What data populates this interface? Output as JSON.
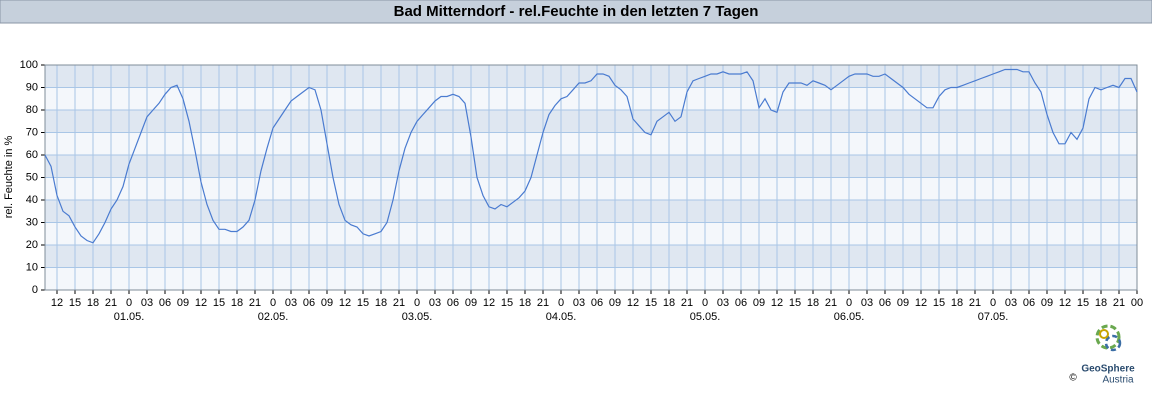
{
  "chart_data": {
    "type": "line",
    "title": "Bad Mitterndorf - rel.Feuchte in den letzten 7 Tagen",
    "y_label": "rel. Feuchte in %",
    "x": [
      -14,
      -13,
      -12,
      -11,
      -10,
      -9,
      -8,
      -7,
      -6,
      -5,
      -4,
      -3,
      -2,
      -1,
      0,
      1,
      2,
      3,
      4,
      5,
      6,
      7,
      8,
      9,
      10,
      11,
      12,
      13,
      14,
      15,
      16,
      17,
      18,
      19,
      20,
      21,
      22,
      23,
      24,
      25,
      26,
      27,
      28,
      29,
      30,
      31,
      32,
      33,
      34,
      35,
      36,
      37,
      38,
      39,
      40,
      41,
      42,
      43,
      44,
      45,
      46,
      47,
      48,
      49,
      50,
      51,
      52,
      53,
      54,
      55,
      56,
      57,
      58,
      59,
      60,
      61,
      62,
      63,
      64,
      65,
      66,
      67,
      68,
      69,
      70,
      71,
      72,
      73,
      74,
      75,
      76,
      77,
      78,
      79,
      80,
      81,
      82,
      83,
      84,
      85,
      86,
      87,
      88,
      89,
      90,
      91,
      92,
      93,
      94,
      95,
      96,
      97,
      98,
      99,
      100,
      101,
      102,
      103,
      104,
      105,
      106,
      107,
      108,
      109,
      110,
      111,
      112,
      113,
      114,
      115,
      116,
      117,
      118,
      119,
      120,
      121,
      122,
      123,
      124,
      125,
      126,
      127,
      128,
      129,
      130,
      131,
      132,
      133,
      134,
      135,
      136,
      137,
      138,
      139,
      140,
      141,
      142,
      143,
      144,
      145,
      146,
      147,
      148,
      149,
      150,
      151,
      152,
      153,
      154,
      155,
      156,
      157,
      158,
      159,
      160,
      161,
      162,
      163,
      164,
      165,
      166,
      167,
      168
    ],
    "series": [
      {
        "name": "rel. Feuchte",
        "color": "#4a7bd0",
        "values": [
          60,
          55,
          42,
          35,
          33,
          28,
          24,
          22,
          21,
          25,
          30,
          36,
          40,
          46,
          56,
          63,
          70,
          77,
          80,
          83,
          87,
          90,
          91,
          85,
          75,
          62,
          48,
          38,
          31,
          27,
          27,
          26,
          26,
          28,
          31,
          40,
          53,
          63,
          72,
          76,
          80,
          84,
          86,
          88,
          90,
          89,
          80,
          65,
          50,
          38,
          31,
          29,
          28,
          25,
          24,
          25,
          26,
          30,
          40,
          53,
          63,
          70,
          75,
          78,
          81,
          84,
          86,
          86,
          87,
          86,
          83,
          68,
          50,
          42,
          37,
          36,
          38,
          37,
          39,
          41,
          44,
          50,
          60,
          70,
          78,
          82,
          85,
          86,
          89,
          92,
          92,
          93,
          96,
          96,
          95,
          91,
          89,
          86,
          76,
          73,
          70,
          69,
          75,
          77,
          79,
          75,
          77,
          88,
          93,
          94,
          95,
          96,
          96,
          97,
          96,
          96,
          96,
          97,
          93,
          81,
          85,
          80,
          79,
          88,
          92,
          92,
          92,
          91,
          93,
          92,
          91,
          89,
          91,
          93,
          95,
          96,
          96,
          96,
          95,
          95,
          96,
          94,
          92,
          90,
          87,
          85,
          83,
          81,
          81,
          86,
          89,
          90,
          90,
          91,
          92,
          93,
          94,
          95,
          96,
          97,
          98,
          98,
          98,
          97,
          97,
          92,
          88,
          78,
          70,
          65,
          65,
          70,
          67,
          72,
          85,
          90,
          89,
          90,
          91,
          90,
          94,
          94,
          88
        ]
      }
    ],
    "xlim": [
      -14,
      168
    ],
    "xticks": [
      {
        "value": -12,
        "label": "12"
      },
      {
        "value": -9,
        "label": "15"
      },
      {
        "value": -6,
        "label": "18"
      },
      {
        "value": -3,
        "label": "21"
      },
      {
        "value": 0,
        "label": "0"
      },
      {
        "value": 3,
        "label": "03"
      },
      {
        "value": 6,
        "label": "06"
      },
      {
        "value": 9,
        "label": "09"
      },
      {
        "value": 12,
        "label": "12"
      },
      {
        "value": 15,
        "label": "15"
      },
      {
        "value": 18,
        "label": "18"
      },
      {
        "value": 21,
        "label": "21"
      },
      {
        "value": 24,
        "label": "0"
      },
      {
        "value": 27,
        "label": "03"
      },
      {
        "value": 30,
        "label": "06"
      },
      {
        "value": 33,
        "label": "09"
      },
      {
        "value": 36,
        "label": "12"
      },
      {
        "value": 39,
        "label": "15"
      },
      {
        "value": 42,
        "label": "18"
      },
      {
        "value": 45,
        "label": "21"
      },
      {
        "value": 48,
        "label": "0"
      },
      {
        "value": 51,
        "label": "03"
      },
      {
        "value": 54,
        "label": "06"
      },
      {
        "value": 57,
        "label": "09"
      },
      {
        "value": 60,
        "label": "12"
      },
      {
        "value": 63,
        "label": "15"
      },
      {
        "value": 66,
        "label": "18"
      },
      {
        "value": 69,
        "label": "21"
      },
      {
        "value": 72,
        "label": "0"
      },
      {
        "value": 75,
        "label": "03"
      },
      {
        "value": 78,
        "label": "06"
      },
      {
        "value": 81,
        "label": "09"
      },
      {
        "value": 84,
        "label": "12"
      },
      {
        "value": 87,
        "label": "15"
      },
      {
        "value": 90,
        "label": "18"
      },
      {
        "value": 93,
        "label": "21"
      },
      {
        "value": 96,
        "label": "0"
      },
      {
        "value": 99,
        "label": "03"
      },
      {
        "value": 102,
        "label": "06"
      },
      {
        "value": 105,
        "label": "09"
      },
      {
        "value": 108,
        "label": "12"
      },
      {
        "value": 111,
        "label": "15"
      },
      {
        "value": 114,
        "label": "18"
      },
      {
        "value": 117,
        "label": "21"
      },
      {
        "value": 120,
        "label": "0"
      },
      {
        "value": 123,
        "label": "03"
      },
      {
        "value": 126,
        "label": "06"
      },
      {
        "value": 129,
        "label": "09"
      },
      {
        "value": 132,
        "label": "12"
      },
      {
        "value": 135,
        "label": "15"
      },
      {
        "value": 138,
        "label": "18"
      },
      {
        "value": 141,
        "label": "21"
      },
      {
        "value": 144,
        "label": "0"
      },
      {
        "value": 147,
        "label": "03"
      },
      {
        "value": 150,
        "label": "06"
      },
      {
        "value": 153,
        "label": "09"
      },
      {
        "value": 156,
        "label": "12"
      },
      {
        "value": 159,
        "label": "15"
      },
      {
        "value": 162,
        "label": "18"
      },
      {
        "value": 165,
        "label": "21"
      },
      {
        "value": 168,
        "label": "00"
      }
    ],
    "date_labels": [
      {
        "value": 0,
        "label": "01.05."
      },
      {
        "value": 24,
        "label": "02.05."
      },
      {
        "value": 48,
        "label": "03.05."
      },
      {
        "value": 72,
        "label": "04.05."
      },
      {
        "value": 96,
        "label": "05.05."
      },
      {
        "value": 120,
        "label": "06.05."
      },
      {
        "value": 144,
        "label": "07.05."
      }
    ],
    "ylim": [
      0,
      100
    ],
    "yticks": [
      0,
      10,
      20,
      30,
      40,
      50,
      60,
      70,
      80,
      90,
      100
    ],
    "grid": true,
    "logo": {
      "name": "GeoSphere",
      "sub": "Austria",
      "copyright": "©"
    }
  }
}
